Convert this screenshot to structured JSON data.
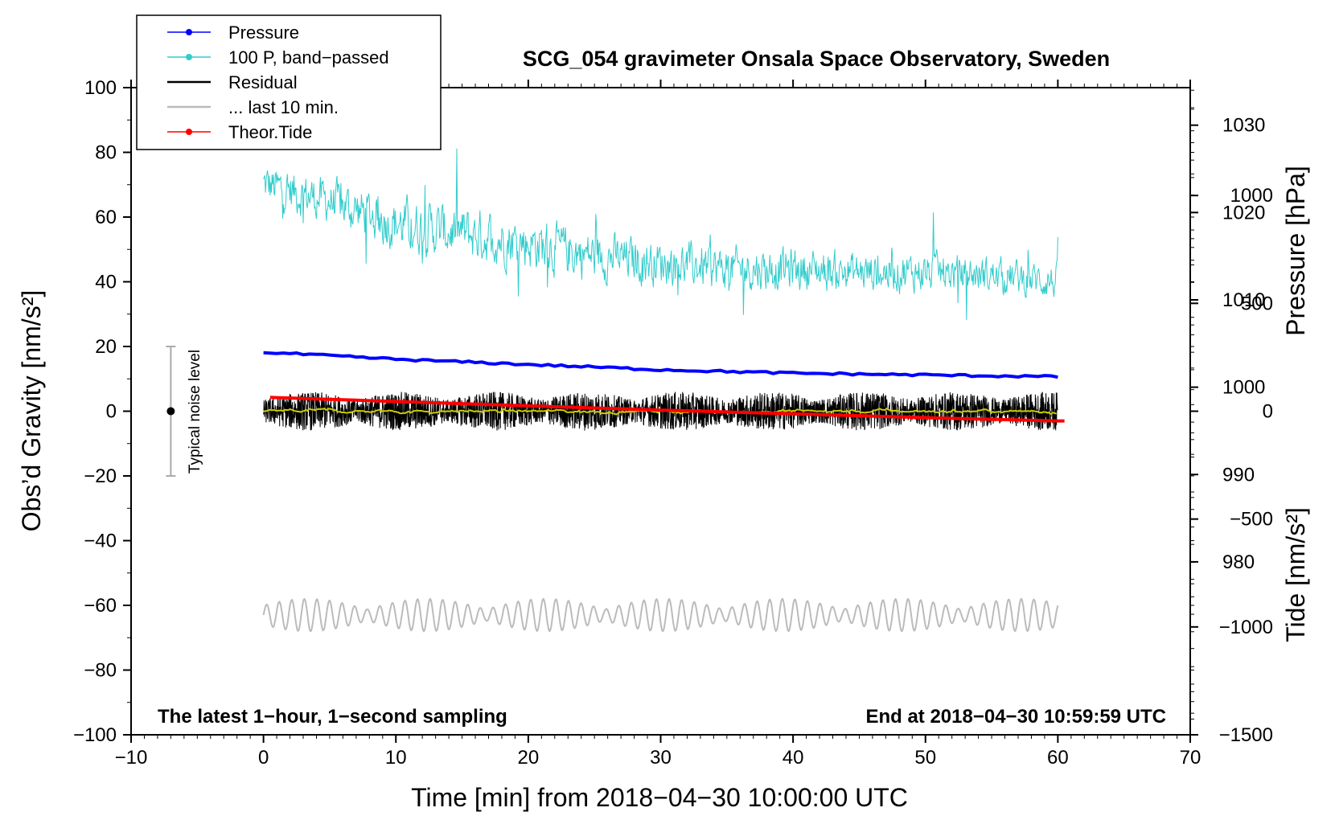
{
  "chart_data": {
    "type": "line",
    "title": "SCG_054 gravimeter Onsala Space Observatory, Sweden",
    "xlabel": "Time [min] from 2018−04−30 10:00:00 UTC",
    "ylabel_left": "Obs’d Gravity [nm/s²]",
    "ylabel_pressure": "Pressure [hPa]",
    "ylabel_tide": "Tide [nm/s²]",
    "footer_left": "The latest 1−hour, 1−second sampling",
    "footer_right": "End at 2018−04−30 10:59:59 UTC",
    "noise_label": "Typical noise level",
    "noise_range": [
      -20,
      20
    ],
    "noise_x": -7,
    "xlim": [
      -10,
      70
    ],
    "ylim": [
      -100,
      100
    ],
    "pressure_lim": [
      960.2,
      1034.3
    ],
    "tide_lim": [
      -1500,
      1500
    ],
    "x_ticks": [
      "−10",
      "0",
      "10",
      "20",
      "30",
      "40",
      "50",
      "60",
      "70"
    ],
    "x_tick_values": [
      -10,
      0,
      10,
      20,
      30,
      40,
      50,
      60,
      70
    ],
    "y_ticks": [
      "100",
      "80",
      "60",
      "40",
      "20",
      "0",
      "−20",
      "−40",
      "−60",
      "−80",
      "−100"
    ],
    "y_tick_values": [
      100,
      80,
      60,
      40,
      20,
      0,
      -20,
      -40,
      -60,
      -80,
      -100
    ],
    "pressure_ticks": [
      "1030",
      "1020",
      "1010",
      "1000",
      "990",
      "980"
    ],
    "pressure_tick_values": [
      1030,
      1020,
      1010,
      1000,
      990,
      980
    ],
    "tide_ticks": [
      "1000",
      "500",
      "0",
      "−500",
      "−1000",
      "−1500"
    ],
    "tide_tick_values": [
      1000,
      500,
      0,
      -500,
      -1000,
      -1500
    ],
    "legend": [
      "Pressure",
      "100 P, band−passed",
      "Residual",
      "... last 10 min.",
      "Theor.Tide"
    ],
    "colors": {
      "pressure": "#0000ff",
      "bandpassed": "#33cccc",
      "residual": "#000000",
      "smoothed": "#cccc00",
      "last10": "#bbbbbb",
      "tide": "#ff0000",
      "noisebar": "#aaaaaa"
    },
    "series": [
      {
        "name": "Pressure",
        "unit": "hPa",
        "x": [
          0,
          10,
          20,
          30,
          40,
          50,
          60
        ],
        "values": [
          1004.0,
          1003.2,
          1002.6,
          1002.0,
          1001.6,
          1001.4,
          1001.2
        ]
      },
      {
        "name": "100 P, band−passed",
        "unit": "nm/s2",
        "x": [
          0,
          5,
          10,
          15,
          20,
          25,
          30,
          35,
          40,
          45,
          50,
          55,
          60
        ],
        "values": [
          70,
          65,
          58,
          55,
          52,
          48,
          46,
          44,
          44,
          43,
          43,
          42,
          40
        ],
        "amplitude": [
          10,
          10,
          12,
          12,
          12,
          11,
          10,
          10,
          10,
          9,
          9,
          8,
          8
        ]
      },
      {
        "name": "Residual",
        "unit": "nm/s2",
        "x": [
          0,
          60
        ],
        "values": [
          0,
          0
        ],
        "amplitude": 5
      },
      {
        "name": "... last 10 min.",
        "unit": "nm/s2",
        "x": [
          0,
          60
        ],
        "values": [
          -63,
          -63
        ],
        "amplitude": 5
      },
      {
        "name": "Theor.Tide",
        "unit": "nm/s2",
        "x": [
          0,
          10,
          20,
          30,
          40,
          50,
          60
        ],
        "values": [
          65,
          45,
          25,
          5,
          -12,
          -30,
          -45
        ]
      }
    ]
  }
}
